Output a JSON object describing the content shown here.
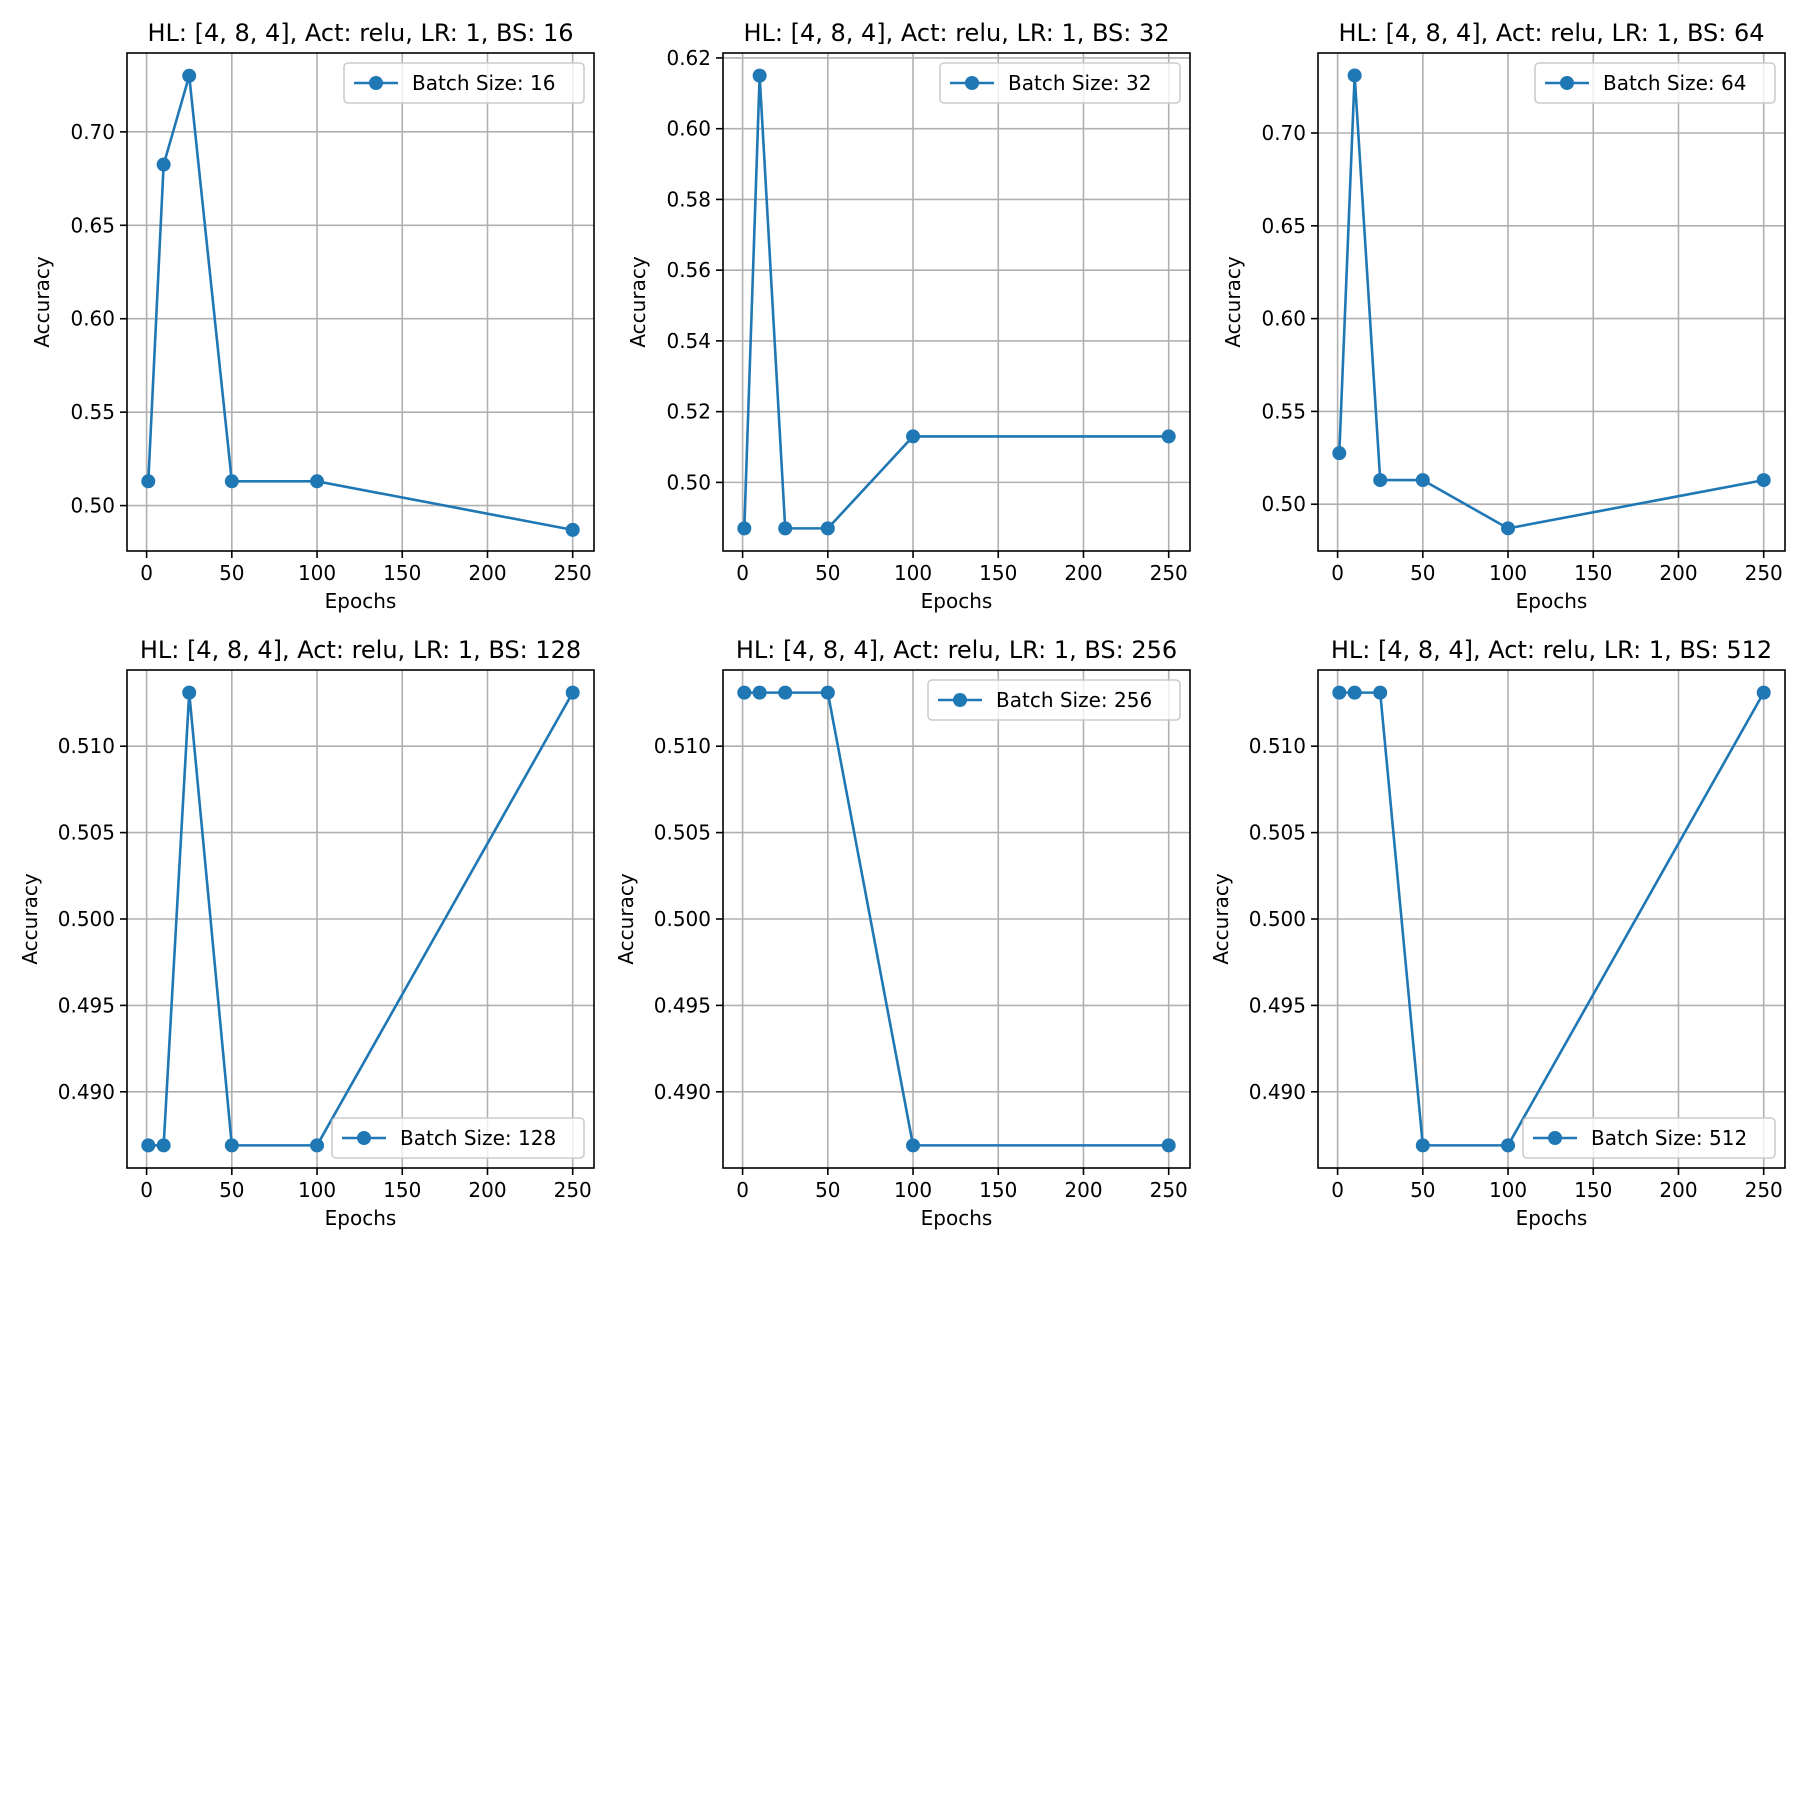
{
  "chart_data": [
    {
      "type": "line",
      "title": "HL: [4, 8, 4], Act: relu, LR: 1, BS: 16",
      "xlabel": "Epochs",
      "ylabel": "Accuracy",
      "x": [
        1,
        10,
        25,
        50,
        100,
        250
      ],
      "series": [
        {
          "name": "Batch Size: 16",
          "values": [
            0.513,
            0.6825,
            0.73,
            0.513,
            0.513,
            0.487
          ]
        }
      ],
      "xlim": [
        -11.5,
        262.5
      ],
      "ylim": [
        0.4757,
        0.7422
      ],
      "xticks": [
        0,
        50,
        100,
        150,
        200,
        250
      ],
      "xtick_labels": [
        "0",
        "50",
        "100",
        "150",
        "200",
        "250"
      ],
      "yticks": [
        0.5,
        0.55,
        0.6,
        0.65,
        0.7
      ],
      "ytick_labels": [
        "0.50",
        "0.55",
        "0.60",
        "0.65",
        "0.70"
      ],
      "legend": "top-right",
      "grid": true,
      "color": "#1f77b4"
    },
    {
      "type": "line",
      "title": "HL: [4, 8, 4], Act: relu, LR: 1, BS: 32",
      "xlabel": "Epochs",
      "ylabel": "Accuracy",
      "x": [
        1,
        10,
        25,
        50,
        100,
        250
      ],
      "series": [
        {
          "name": "Batch Size: 32",
          "values": [
            0.487,
            0.615,
            0.487,
            0.487,
            0.513,
            0.513
          ]
        }
      ],
      "xlim": [
        -11.5,
        262.5
      ],
      "ylim": [
        0.4806,
        0.6214
      ],
      "xticks": [
        0,
        50,
        100,
        150,
        200,
        250
      ],
      "xtick_labels": [
        "0",
        "50",
        "100",
        "150",
        "200",
        "250"
      ],
      "yticks": [
        0.5,
        0.52,
        0.54,
        0.56,
        0.58,
        0.6,
        0.62
      ],
      "ytick_labels": [
        "0.50",
        "0.52",
        "0.54",
        "0.56",
        "0.58",
        "0.60",
        "0.62"
      ],
      "legend": "top-right",
      "grid": true,
      "color": "#1f77b4"
    },
    {
      "type": "line",
      "title": "HL: [4, 8, 4], Act: relu, LR: 1, BS: 64",
      "xlabel": "Epochs",
      "ylabel": "Accuracy",
      "x": [
        1,
        10,
        25,
        50,
        100,
        250
      ],
      "series": [
        {
          "name": "Batch Size: 64",
          "values": [
            0.5275,
            0.731,
            0.513,
            0.513,
            0.487,
            0.513
          ]
        }
      ],
      "xlim": [
        -11.5,
        262.5
      ],
      "ylim": [
        0.4748,
        0.7431
      ],
      "xticks": [
        0,
        50,
        100,
        150,
        200,
        250
      ],
      "xtick_labels": [
        "0",
        "50",
        "100",
        "150",
        "200",
        "250"
      ],
      "yticks": [
        0.5,
        0.55,
        0.6,
        0.65,
        0.7
      ],
      "ytick_labels": [
        "0.50",
        "0.55",
        "0.60",
        "0.65",
        "0.70"
      ],
      "legend": "top-right",
      "grid": true,
      "color": "#1f77b4"
    },
    {
      "type": "line",
      "title": "HL: [4, 8, 4], Act: relu, LR: 1, BS: 128",
      "xlabel": "Epochs",
      "ylabel": "Accuracy",
      "x": [
        1,
        10,
        25,
        50,
        100,
        250
      ],
      "series": [
        {
          "name": "Batch Size: 128",
          "values": [
            0.4869,
            0.4869,
            0.5131,
            0.4869,
            0.4869,
            0.5131
          ]
        }
      ],
      "xlim": [
        -11.5,
        262.5
      ],
      "ylim": [
        0.48559,
        0.51441
      ],
      "xticks": [
        0,
        50,
        100,
        150,
        200,
        250
      ],
      "xtick_labels": [
        "0",
        "50",
        "100",
        "150",
        "200",
        "250"
      ],
      "yticks": [
        0.49,
        0.495,
        0.5,
        0.505,
        0.51
      ],
      "ytick_labels": [
        "0.490",
        "0.495",
        "0.500",
        "0.505",
        "0.510"
      ],
      "legend": "bottom-right",
      "grid": true,
      "color": "#1f77b4"
    },
    {
      "type": "line",
      "title": "HL: [4, 8, 4], Act: relu, LR: 1, BS: 256",
      "xlabel": "Epochs",
      "ylabel": "Accuracy",
      "x": [
        1,
        10,
        25,
        50,
        100,
        250
      ],
      "series": [
        {
          "name": "Batch Size: 256",
          "values": [
            0.5131,
            0.5131,
            0.5131,
            0.5131,
            0.4869,
            0.4869
          ]
        }
      ],
      "xlim": [
        -11.5,
        262.5
      ],
      "ylim": [
        0.48559,
        0.51441
      ],
      "xticks": [
        0,
        50,
        100,
        150,
        200,
        250
      ],
      "xtick_labels": [
        "0",
        "50",
        "100",
        "150",
        "200",
        "250"
      ],
      "yticks": [
        0.49,
        0.495,
        0.5,
        0.505,
        0.51
      ],
      "ytick_labels": [
        "0.490",
        "0.495",
        "0.500",
        "0.505",
        "0.510"
      ],
      "legend": "top-right",
      "grid": true,
      "color": "#1f77b4"
    },
    {
      "type": "line",
      "title": "HL: [4, 8, 4], Act: relu, LR: 1, BS: 512",
      "xlabel": "Epochs",
      "ylabel": "Accuracy",
      "x": [
        1,
        10,
        25,
        50,
        100,
        250
      ],
      "series": [
        {
          "name": "Batch Size: 512",
          "values": [
            0.5131,
            0.5131,
            0.5131,
            0.4869,
            0.4869,
            0.5131
          ]
        }
      ],
      "xlim": [
        -11.5,
        262.5
      ],
      "ylim": [
        0.48559,
        0.51441
      ],
      "xticks": [
        0,
        50,
        100,
        150,
        200,
        250
      ],
      "xtick_labels": [
        "0",
        "50",
        "100",
        "150",
        "200",
        "250"
      ],
      "yticks": [
        0.49,
        0.495,
        0.5,
        0.505,
        0.51
      ],
      "ytick_labels": [
        "0.490",
        "0.495",
        "0.500",
        "0.505",
        "0.510"
      ],
      "legend": "bottom-right",
      "grid": true,
      "color": "#1f77b4"
    }
  ]
}
